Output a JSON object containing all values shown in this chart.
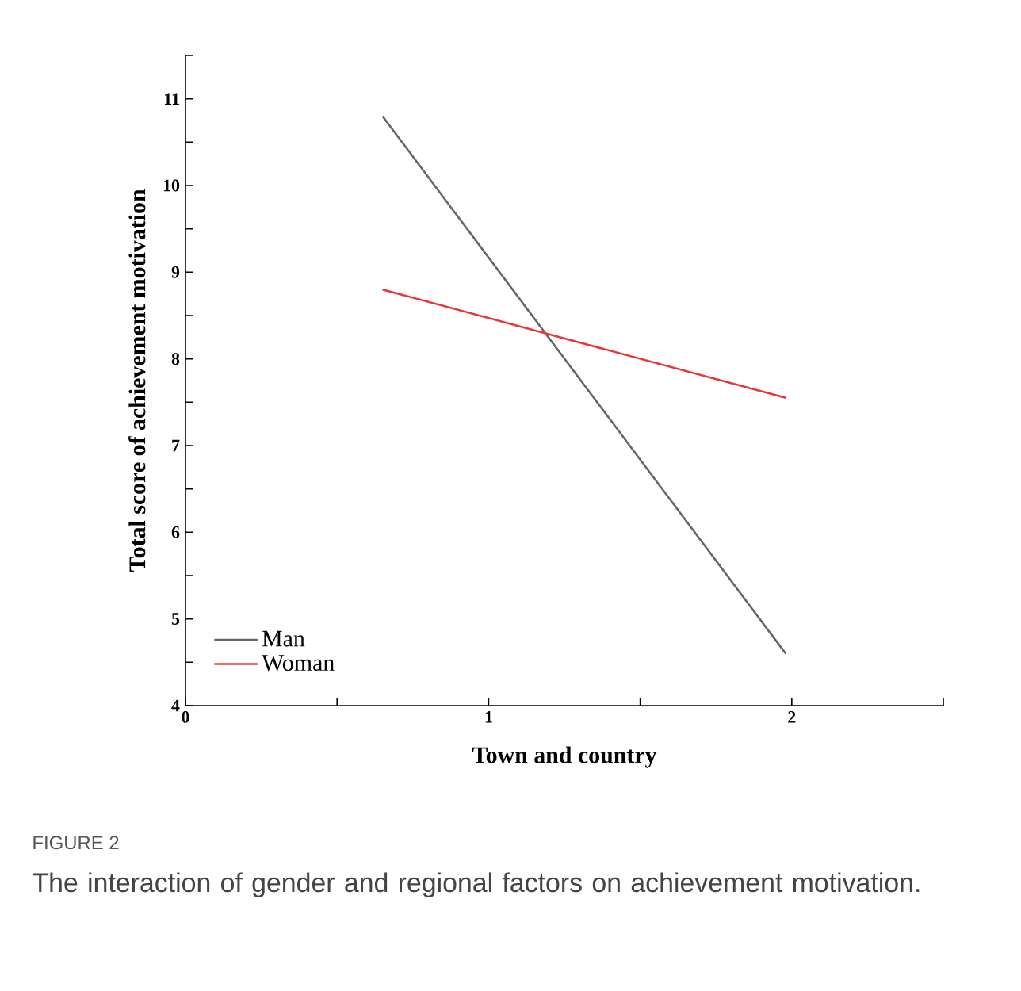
{
  "chart_data": {
    "type": "line",
    "xlabel": "Town and country",
    "ylabel": "Total score of achievement motivation",
    "xlim": [
      0,
      2.5
    ],
    "ylim": [
      4,
      11.5
    ],
    "xticks": [
      0,
      1,
      2,
      {
        "value": 0.5,
        "label": null
      },
      {
        "value": 1.5,
        "label": null
      },
      {
        "value": 2.5,
        "label": null
      }
    ],
    "yticks": [
      4,
      5,
      6,
      7,
      8,
      9,
      10,
      11,
      {
        "value": 4.5,
        "label": null
      },
      {
        "value": 5.5,
        "label": null
      },
      {
        "value": 6.5,
        "label": null
      },
      {
        "value": 7.5,
        "label": null
      },
      {
        "value": 8.5,
        "label": null
      },
      {
        "value": 9.5,
        "label": null
      },
      {
        "value": 10.5,
        "label": null
      },
      {
        "value": 11.5,
        "label": null
      }
    ],
    "x": [
      0.65,
      1.98
    ],
    "series": [
      {
        "name": "Man",
        "color": "#666666",
        "values": [
          10.8,
          4.6
        ]
      },
      {
        "name": "Woman",
        "color": "#e8373a",
        "values": [
          8.8,
          7.55
        ]
      }
    ],
    "legend": "bottom left",
    "grid": false,
    "marker": "none",
    "line_style": "solid",
    "annotations": [
      "FIGURE 2",
      "The interaction of gender and regional factors on achievement motivation."
    ]
  }
}
